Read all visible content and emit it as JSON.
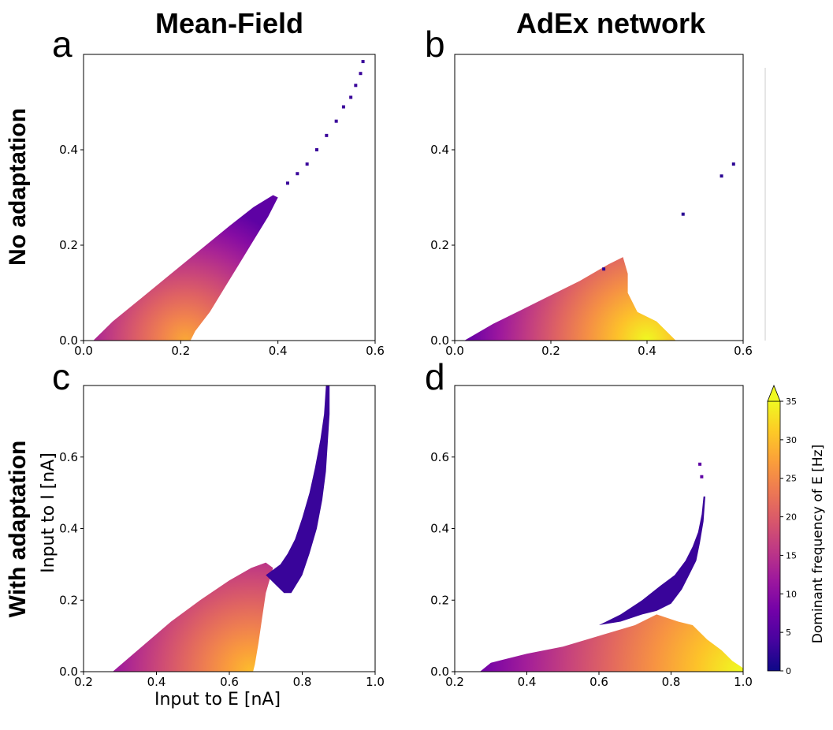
{
  "column_titles": [
    "Mean-Field",
    "AdEx network"
  ],
  "row_labels": [
    "No adaptation",
    "With adaptation"
  ],
  "chart_data": [
    {
      "panel": "a",
      "type": "heatmap",
      "title": "",
      "xlabel": "",
      "ylabel": "",
      "xlim": [
        0.0,
        0.6
      ],
      "ylim": [
        0.0,
        0.6
      ],
      "xticks": [
        "0.0",
        "0.2",
        "0.4",
        "0.6"
      ],
      "yticks": [
        "0.0",
        "0.2",
        "0.4"
      ],
      "region": {
        "boundary": [
          [
            0.02,
            0.0
          ],
          [
            0.06,
            0.04
          ],
          [
            0.12,
            0.09
          ],
          [
            0.18,
            0.14
          ],
          [
            0.24,
            0.19
          ],
          [
            0.3,
            0.24
          ],
          [
            0.35,
            0.28
          ],
          [
            0.39,
            0.305
          ],
          [
            0.4,
            0.3
          ],
          [
            0.38,
            0.26
          ],
          [
            0.35,
            0.21
          ],
          [
            0.32,
            0.16
          ],
          [
            0.29,
            0.11
          ],
          [
            0.26,
            0.06
          ],
          [
            0.23,
            0.02
          ],
          [
            0.22,
            0.0
          ]
        ],
        "hot_spot": [
          0.21,
          0.0
        ],
        "hot_value": 28,
        "cold_spot": [
          0.37,
          0.24
        ],
        "cold_value": 6
      },
      "scatter": [
        [
          0.42,
          0.33
        ],
        [
          0.44,
          0.35
        ],
        [
          0.46,
          0.37
        ],
        [
          0.48,
          0.4
        ],
        [
          0.5,
          0.43
        ],
        [
          0.52,
          0.46
        ],
        [
          0.535,
          0.49
        ],
        [
          0.55,
          0.51
        ],
        [
          0.56,
          0.535
        ],
        [
          0.57,
          0.56
        ],
        [
          0.575,
          0.585
        ]
      ],
      "scatter_value": 3
    },
    {
      "panel": "b",
      "type": "heatmap",
      "title": "",
      "xlabel": "",
      "ylabel": "",
      "xlim": [
        0.0,
        0.6
      ],
      "ylim": [
        0.0,
        0.6
      ],
      "xticks": [
        "0.0",
        "0.2",
        "0.4",
        "0.6"
      ],
      "yticks": [
        "0.0",
        "0.2",
        "0.4"
      ],
      "region": {
        "boundary": [
          [
            0.02,
            0.0
          ],
          [
            0.08,
            0.035
          ],
          [
            0.14,
            0.065
          ],
          [
            0.2,
            0.095
          ],
          [
            0.26,
            0.125
          ],
          [
            0.32,
            0.16
          ],
          [
            0.35,
            0.175
          ],
          [
            0.36,
            0.14
          ],
          [
            0.36,
            0.1
          ],
          [
            0.38,
            0.06
          ],
          [
            0.42,
            0.04
          ],
          [
            0.44,
            0.02
          ],
          [
            0.46,
            0.0
          ]
        ],
        "hot_spot": [
          0.4,
          0.0
        ],
        "hot_value": 35,
        "cold_spot": [
          0.03,
          0.0
        ],
        "cold_value": 7
      },
      "scatter": [
        [
          0.31,
          0.15
        ],
        [
          0.475,
          0.265
        ],
        [
          0.555,
          0.345
        ],
        [
          0.58,
          0.37
        ]
      ],
      "scatter_value": 2
    },
    {
      "panel": "c",
      "type": "heatmap",
      "title": "",
      "xlabel": "Input to E [nA]",
      "ylabel": "Input to I [nA]",
      "xlim": [
        0.2,
        1.0
      ],
      "ylim": [
        0.0,
        0.8
      ],
      "xticks": [
        "0.2",
        "0.4",
        "0.6",
        "0.8",
        "1.0"
      ],
      "yticks": [
        "0.0",
        "0.2",
        "0.4",
        "0.6"
      ],
      "region": {
        "boundary": [
          [
            0.28,
            0.0
          ],
          [
            0.36,
            0.07
          ],
          [
            0.44,
            0.14
          ],
          [
            0.52,
            0.2
          ],
          [
            0.6,
            0.255
          ],
          [
            0.66,
            0.29
          ],
          [
            0.7,
            0.305
          ],
          [
            0.72,
            0.29
          ],
          [
            0.7,
            0.22
          ],
          [
            0.69,
            0.15
          ],
          [
            0.68,
            0.08
          ],
          [
            0.67,
            0.02
          ],
          [
            0.665,
            0.0
          ]
        ],
        "hot_spot": [
          0.66,
          0.0
        ],
        "hot_value": 30,
        "cold_spot": [
          0.29,
          0.0
        ],
        "cold_value": 12
      },
      "branch": {
        "boundary": [
          [
            0.7,
            0.27
          ],
          [
            0.74,
            0.3
          ],
          [
            0.76,
            0.33
          ],
          [
            0.78,
            0.37
          ],
          [
            0.8,
            0.43
          ],
          [
            0.82,
            0.5
          ],
          [
            0.835,
            0.57
          ],
          [
            0.85,
            0.65
          ],
          [
            0.86,
            0.72
          ],
          [
            0.865,
            0.8
          ],
          [
            0.875,
            0.8
          ],
          [
            0.875,
            0.72
          ],
          [
            0.87,
            0.64
          ],
          [
            0.865,
            0.56
          ],
          [
            0.855,
            0.48
          ],
          [
            0.84,
            0.4
          ],
          [
            0.82,
            0.33
          ],
          [
            0.8,
            0.27
          ],
          [
            0.77,
            0.22
          ],
          [
            0.75,
            0.22
          ],
          [
            0.73,
            0.24
          ]
        ],
        "value": 3
      }
    },
    {
      "panel": "d",
      "type": "heatmap",
      "title": "",
      "xlabel": "",
      "ylabel": "",
      "xlim": [
        0.2,
        1.0
      ],
      "ylim": [
        0.0,
        0.8
      ],
      "xticks": [
        "0.2",
        "0.4",
        "0.6",
        "0.8",
        "1.0"
      ],
      "yticks": [
        "0.0",
        "0.2",
        "0.4",
        "0.6"
      ],
      "region": {
        "boundary": [
          [
            0.27,
            0.0
          ],
          [
            0.3,
            0.025
          ],
          [
            0.4,
            0.05
          ],
          [
            0.5,
            0.07
          ],
          [
            0.6,
            0.1
          ],
          [
            0.7,
            0.13
          ],
          [
            0.76,
            0.16
          ],
          [
            0.82,
            0.14
          ],
          [
            0.86,
            0.13
          ],
          [
            0.9,
            0.09
          ],
          [
            0.94,
            0.06
          ],
          [
            0.97,
            0.03
          ],
          [
            1.0,
            0.01
          ],
          [
            1.0,
            0.0
          ]
        ],
        "hot_spot": [
          0.99,
          0.0
        ],
        "hot_value": 35,
        "cold_spot": [
          0.28,
          0.0
        ],
        "cold_value": 8
      },
      "branch": {
        "boundary": [
          [
            0.6,
            0.13
          ],
          [
            0.66,
            0.16
          ],
          [
            0.72,
            0.2
          ],
          [
            0.77,
            0.24
          ],
          [
            0.81,
            0.27
          ],
          [
            0.84,
            0.31
          ],
          [
            0.86,
            0.35
          ],
          [
            0.875,
            0.39
          ],
          [
            0.885,
            0.44
          ],
          [
            0.89,
            0.49
          ],
          [
            0.895,
            0.49
          ],
          [
            0.89,
            0.42
          ],
          [
            0.88,
            0.36
          ],
          [
            0.87,
            0.31
          ],
          [
            0.85,
            0.27
          ],
          [
            0.83,
            0.23
          ],
          [
            0.8,
            0.19
          ],
          [
            0.76,
            0.17
          ],
          [
            0.72,
            0.16
          ],
          [
            0.66,
            0.14
          ]
        ],
        "value": 3
      },
      "scatter": [
        [
          0.88,
          0.58
        ],
        [
          0.885,
          0.545
        ]
      ],
      "scatter_value": 6
    }
  ],
  "colorbar": {
    "label": "Dominant frequency of E [Hz]",
    "min": 0,
    "max": 35,
    "ticks": [
      "0",
      "5",
      "10",
      "15",
      "20",
      "25",
      "30",
      "35"
    ],
    "colormap_stops": [
      "#0d0887",
      "#46039f",
      "#7201a8",
      "#9c179e",
      "#bd3786",
      "#d8576b",
      "#ed7953",
      "#fb9f3a",
      "#fdca26",
      "#f0f921"
    ],
    "extend_color": "#f0f921"
  }
}
